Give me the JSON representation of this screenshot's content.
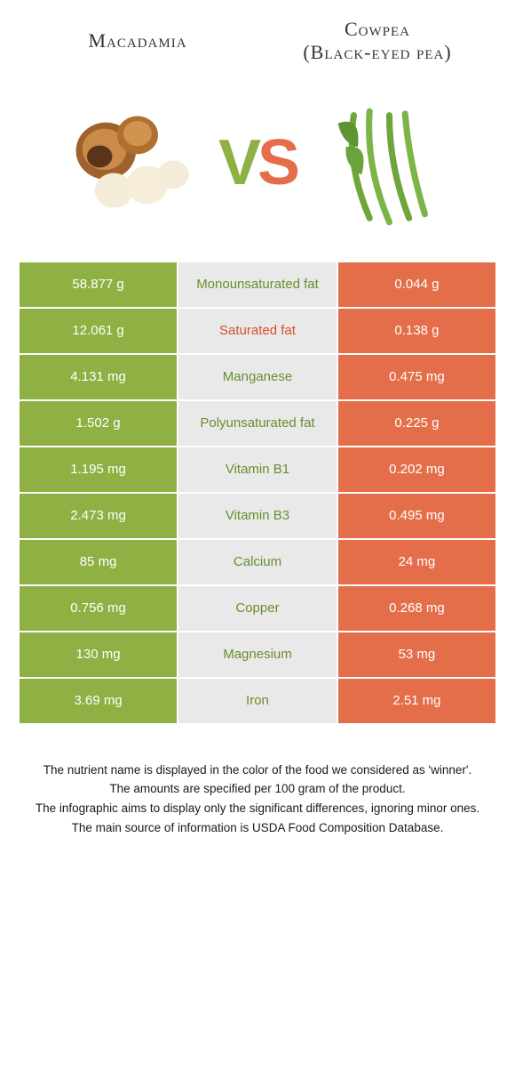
{
  "header": {
    "left_title": "Macadamia",
    "right_title_line1": "Cowpea",
    "right_title_line2": "(Black-eyed pea)"
  },
  "vs": {
    "v": "V",
    "s": "S"
  },
  "colors": {
    "left": "#8fb042",
    "right": "#e46e49",
    "mid_bg": "#e9e9e9",
    "mid_green": "#6b8e2d",
    "mid_orange": "#d2502b"
  },
  "rows": [
    {
      "left": "58.877 g",
      "label": "Monounsaturated fat",
      "winner": "left",
      "right": "0.044 g"
    },
    {
      "left": "12.061 g",
      "label": "Saturated fat",
      "winner": "right",
      "right": "0.138 g"
    },
    {
      "left": "4.131 mg",
      "label": "Manganese",
      "winner": "left",
      "right": "0.475 mg"
    },
    {
      "left": "1.502 g",
      "label": "Polyunsaturated fat",
      "winner": "left",
      "right": "0.225 g"
    },
    {
      "left": "1.195 mg",
      "label": "Vitamin B1",
      "winner": "left",
      "right": "0.202 mg"
    },
    {
      "left": "2.473 mg",
      "label": "Vitamin B3",
      "winner": "left",
      "right": "0.495 mg"
    },
    {
      "left": "85 mg",
      "label": "Calcium",
      "winner": "left",
      "right": "24 mg"
    },
    {
      "left": "0.756 mg",
      "label": "Copper",
      "winner": "left",
      "right": "0.268 mg"
    },
    {
      "left": "130 mg",
      "label": "Magnesium",
      "winner": "left",
      "right": "53 mg"
    },
    {
      "left": "3.69 mg",
      "label": "Iron",
      "winner": "left",
      "right": "2.51 mg"
    }
  ],
  "footer": {
    "l1": "The nutrient name is displayed in the color of the food we considered as 'winner'.",
    "l2": "The amounts are specified per 100 gram of the product.",
    "l3": "The infographic aims to display only the significant differences, ignoring minor ones.",
    "l4": "The main source of information is USDA Food Composition Database."
  }
}
